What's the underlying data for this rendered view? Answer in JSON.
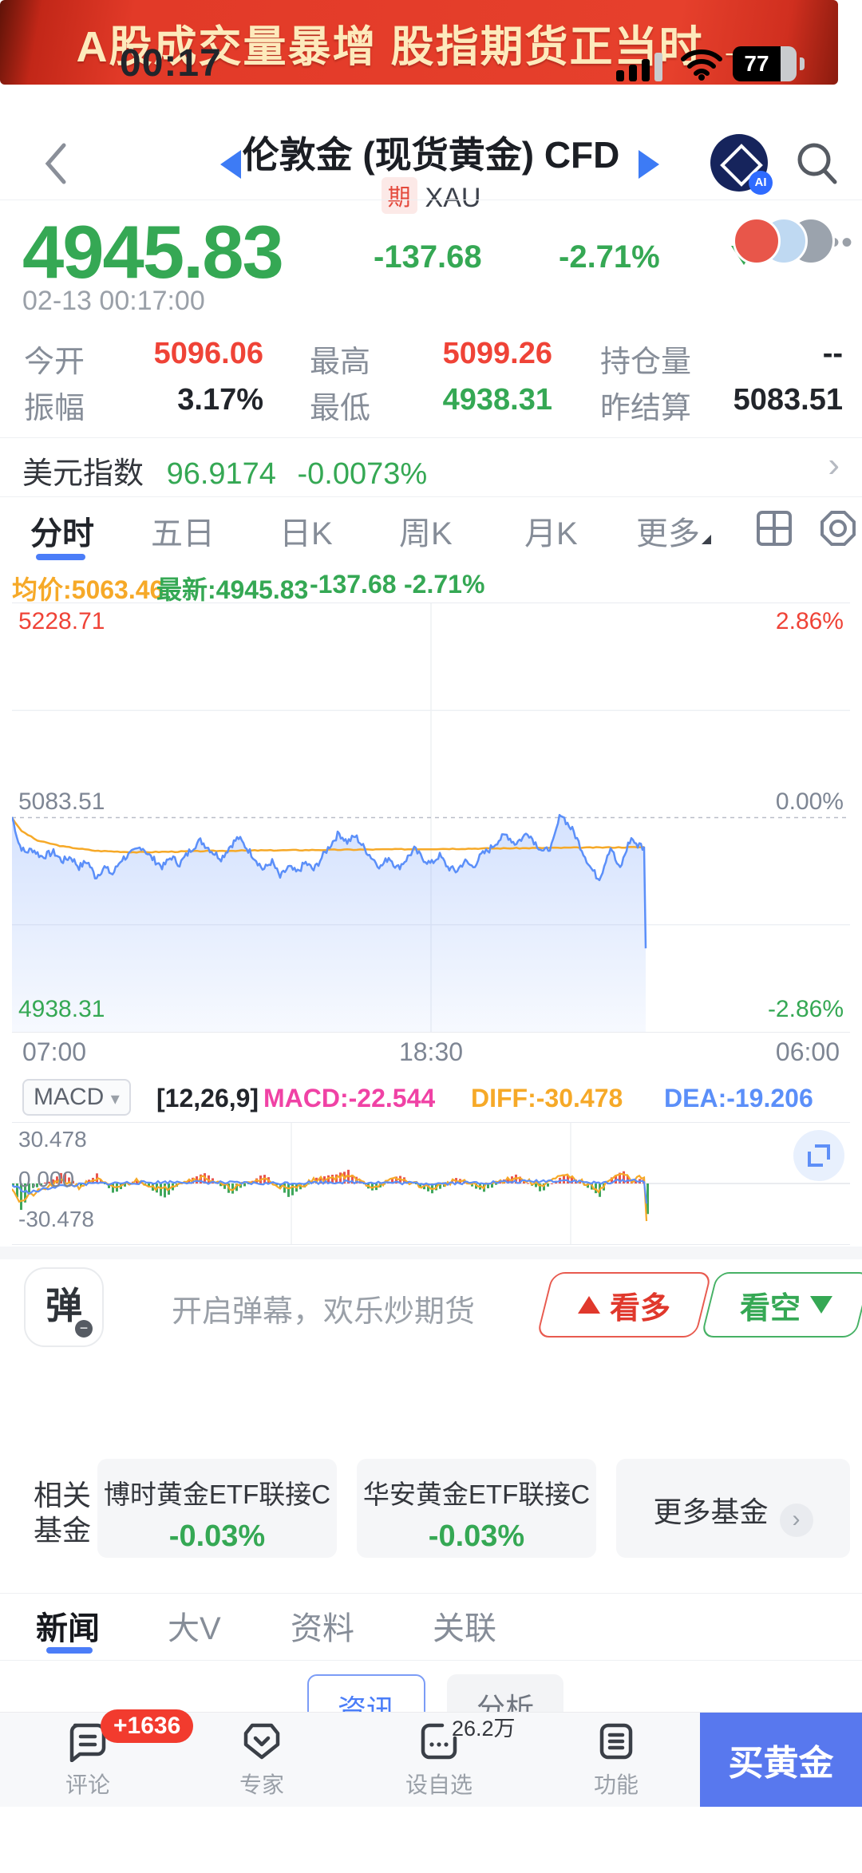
{
  "status_bar": {
    "time": "00:17",
    "battery": "77"
  },
  "header": {
    "title": "伦敦金 (现货黄金) CFD",
    "market_badge": "期",
    "symbol": "XAU"
  },
  "quote": {
    "price": "4945.83",
    "change": "-137.68",
    "change_pct": "-2.71%",
    "timestamp": "02-13 00:17:00",
    "stats": [
      {
        "label": "今开",
        "value": "5096.06"
      },
      {
        "label": "最高",
        "value": "5099.26"
      },
      {
        "label": "持仓量",
        "value": "--"
      },
      {
        "label": "振幅",
        "value": "3.17%"
      },
      {
        "label": "最低",
        "value": "4938.31"
      },
      {
        "label": "昨结算",
        "value": "5083.51"
      }
    ]
  },
  "usd_index": {
    "label": "美元指数",
    "value": "96.9174",
    "change_pct": "-0.0073%"
  },
  "period_tabs": {
    "items": [
      "分时",
      "五日",
      "日K",
      "周K",
      "月K",
      "更多"
    ],
    "active": "分时"
  },
  "chart_header": {
    "avg": "均价:5063.46",
    "last": "最新:4945.83",
    "change": "-137.68",
    "change_pct": "-2.71%"
  },
  "chart_data": [
    {
      "type": "line",
      "panel": "main-intraday",
      "ylim": [
        4938.31,
        5228.71
      ],
      "y_ticks": [
        {
          "value": "5228.71",
          "pct": "2.86%"
        },
        {
          "value": "5083.51",
          "pct": "0.00%"
        },
        {
          "value": "4938.31",
          "pct": "-2.86%"
        }
      ],
      "x_ticks": [
        "07:00",
        "18:30",
        "06:00"
      ],
      "prev_settle": 5083.51,
      "avg_price": 5063.46,
      "last_price": 4945.83,
      "data_end_fraction": 0.758,
      "series": [
        {
          "name": "价格",
          "color": "#5b8ff9",
          "noise": 2.4,
          "anchors": [
            [
              0,
              5084
            ],
            [
              0.003,
              5078
            ],
            [
              0.008,
              5066
            ],
            [
              0.015,
              5060
            ],
            [
              0.025,
              5062
            ],
            [
              0.035,
              5057
            ],
            [
              0.05,
              5060
            ],
            [
              0.06,
              5054
            ],
            [
              0.07,
              5057
            ],
            [
              0.08,
              5050
            ],
            [
              0.09,
              5054
            ],
            [
              0.1,
              5043
            ],
            [
              0.11,
              5050
            ],
            [
              0.12,
              5045
            ],
            [
              0.13,
              5055
            ],
            [
              0.145,
              5060
            ],
            [
              0.155,
              5064
            ],
            [
              0.165,
              5057
            ],
            [
              0.18,
              5050
            ],
            [
              0.19,
              5057
            ],
            [
              0.2,
              5052
            ],
            [
              0.215,
              5063
            ],
            [
              0.225,
              5068
            ],
            [
              0.24,
              5060
            ],
            [
              0.25,
              5056
            ],
            [
              0.26,
              5064
            ],
            [
              0.27,
              5070
            ],
            [
              0.28,
              5063
            ],
            [
              0.29,
              5056
            ],
            [
              0.3,
              5048
            ],
            [
              0.31,
              5054
            ],
            [
              0.32,
              5043
            ],
            [
              0.33,
              5050
            ],
            [
              0.34,
              5046
            ],
            [
              0.35,
              5053
            ],
            [
              0.36,
              5048
            ],
            [
              0.375,
              5061
            ],
            [
              0.39,
              5073
            ],
            [
              0.4,
              5067
            ],
            [
              0.41,
              5071
            ],
            [
              0.42,
              5063
            ],
            [
              0.43,
              5056
            ],
            [
              0.44,
              5050
            ],
            [
              0.45,
              5057
            ],
            [
              0.46,
              5049
            ],
            [
              0.47,
              5055
            ],
            [
              0.48,
              5062
            ],
            [
              0.49,
              5056
            ],
            [
              0.5,
              5052
            ],
            [
              0.51,
              5058
            ],
            [
              0.52,
              5050
            ],
            [
              0.53,
              5047
            ],
            [
              0.54,
              5054
            ],
            [
              0.55,
              5050
            ],
            [
              0.56,
              5058
            ],
            [
              0.57,
              5062
            ],
            [
              0.58,
              5068
            ],
            [
              0.59,
              5072
            ],
            [
              0.6,
              5066
            ],
            [
              0.61,
              5070
            ],
            [
              0.615,
              5074
            ],
            [
              0.625,
              5066
            ],
            [
              0.635,
              5060
            ],
            [
              0.645,
              5065
            ],
            [
              0.655,
              5087
            ],
            [
              0.662,
              5080
            ],
            [
              0.67,
              5074
            ],
            [
              0.68,
              5062
            ],
            [
              0.69,
              5050
            ],
            [
              0.7,
              5042
            ],
            [
              0.705,
              5048
            ],
            [
              0.71,
              5058
            ],
            [
              0.715,
              5064
            ],
            [
              0.72,
              5055
            ],
            [
              0.725,
              5048
            ],
            [
              0.73,
              5056
            ],
            [
              0.735,
              5065
            ],
            [
              0.74,
              5070
            ],
            [
              0.745,
              5064
            ],
            [
              0.75,
              5067
            ],
            [
              0.753,
              5062
            ],
            [
              0.755,
              5062
            ],
            [
              0.756,
              5010
            ],
            [
              0.7565,
              4968
            ],
            [
              0.757,
              4941
            ],
            [
              0.758,
              4946
            ]
          ]
        },
        {
          "name": "均价",
          "color": "#f6a928",
          "noise": 0.3,
          "anchors": [
            [
              0,
              5083.5
            ],
            [
              0.01,
              5075
            ],
            [
              0.03,
              5068
            ],
            [
              0.06,
              5064
            ],
            [
              0.1,
              5061
            ],
            [
              0.15,
              5060
            ],
            [
              0.25,
              5061
            ],
            [
              0.35,
              5061.5
            ],
            [
              0.45,
              5062
            ],
            [
              0.55,
              5062.5
            ],
            [
              0.65,
              5063
            ],
            [
              0.758,
              5063.5
            ]
          ]
        }
      ]
    },
    {
      "type": "line",
      "panel": "macd",
      "params": [
        12,
        26,
        9
      ],
      "values": {
        "MACD": -22.544,
        "DIFF": -30.478,
        "DEA": -19.206
      },
      "ylim": [
        -38,
        38
      ],
      "y_ticks": [
        "30.478",
        "0.000",
        "-30.478"
      ],
      "data_end_fraction": 0.758,
      "histogram_colors": {
        "up": "#e9554d",
        "down": "#3fa75c"
      },
      "series": [
        {
          "name": "DIFF",
          "color": "#f6a928",
          "noise": 1.6,
          "anchors": [
            [
              0,
              -2
            ],
            [
              0.01,
              -12
            ],
            [
              0.02,
              -8
            ],
            [
              0.04,
              -3
            ],
            [
              0.06,
              2
            ],
            [
              0.08,
              -2
            ],
            [
              0.1,
              3
            ],
            [
              0.12,
              -3
            ],
            [
              0.15,
              2
            ],
            [
              0.18,
              -4
            ],
            [
              0.2,
              1
            ],
            [
              0.23,
              4
            ],
            [
              0.26,
              -3
            ],
            [
              0.3,
              3
            ],
            [
              0.33,
              -4
            ],
            [
              0.36,
              2
            ],
            [
              0.4,
              5
            ],
            [
              0.43,
              -2
            ],
            [
              0.46,
              3
            ],
            [
              0.5,
              -3
            ],
            [
              0.53,
              2
            ],
            [
              0.56,
              -2
            ],
            [
              0.6,
              4
            ],
            [
              0.63,
              -1
            ],
            [
              0.66,
              5
            ],
            [
              0.68,
              1
            ],
            [
              0.7,
              -4
            ],
            [
              0.715,
              3
            ],
            [
              0.73,
              6
            ],
            [
              0.74,
              2
            ],
            [
              0.75,
              4
            ],
            [
              0.755,
              2
            ],
            [
              0.758,
              -33
            ]
          ]
        },
        {
          "name": "DEA",
          "color": "#5b8ff9",
          "noise": 1.0,
          "anchors": [
            [
              0,
              -1
            ],
            [
              0.02,
              -6
            ],
            [
              0.05,
              -2
            ],
            [
              0.1,
              0
            ],
            [
              0.2,
              1
            ],
            [
              0.3,
              0
            ],
            [
              0.4,
              1
            ],
            [
              0.5,
              0
            ],
            [
              0.6,
              1
            ],
            [
              0.66,
              2
            ],
            [
              0.7,
              0
            ],
            [
              0.73,
              2
            ],
            [
              0.75,
              2
            ],
            [
              0.755,
              1
            ],
            [
              0.758,
              -19
            ]
          ]
        }
      ]
    }
  ],
  "macd_header": {
    "selector": "MACD",
    "params": "[12,26,9]",
    "macd": "MACD:-22.544",
    "diff": "DIFF:-30.478",
    "dea": "DEA:-19.206"
  },
  "danmaku": {
    "icon": "弹",
    "text": "开启弹幕，欢乐炒期货",
    "bull": "看多",
    "bear": "看空"
  },
  "banner": {
    "text": "A股成交量暴增 股指期货正当时 →"
  },
  "funds": {
    "label_1": "相关",
    "label_2": "基金",
    "items": [
      {
        "name": "博时黄金ETF联接C",
        "pct": "-0.03%"
      },
      {
        "name": "华安黄金ETF联接C",
        "pct": "-0.03%"
      }
    ],
    "more": "更多基金"
  },
  "news_tabs": {
    "items": [
      "新闻",
      "大V",
      "资料",
      "关联"
    ],
    "active": "新闻"
  },
  "sub_tabs": {
    "items": [
      "资讯",
      "分析"
    ],
    "active": "资讯"
  },
  "bottom_nav": {
    "items": [
      {
        "label": "评论",
        "badge": "+1636"
      },
      {
        "label": "专家"
      },
      {
        "label": "设自选",
        "note": "26.2万"
      },
      {
        "label": "功能"
      }
    ],
    "cta": "买黄金"
  },
  "colors": {
    "up_red": "#ef4337",
    "down_green": "#35a854",
    "accent_blue": "#4b7df8",
    "line_blue": "#5b8ff9",
    "avg_orange": "#f6a928",
    "macd_magenta": "#f042a5",
    "cta_blue": "#5878ee",
    "banner_red": "#e23a28"
  }
}
